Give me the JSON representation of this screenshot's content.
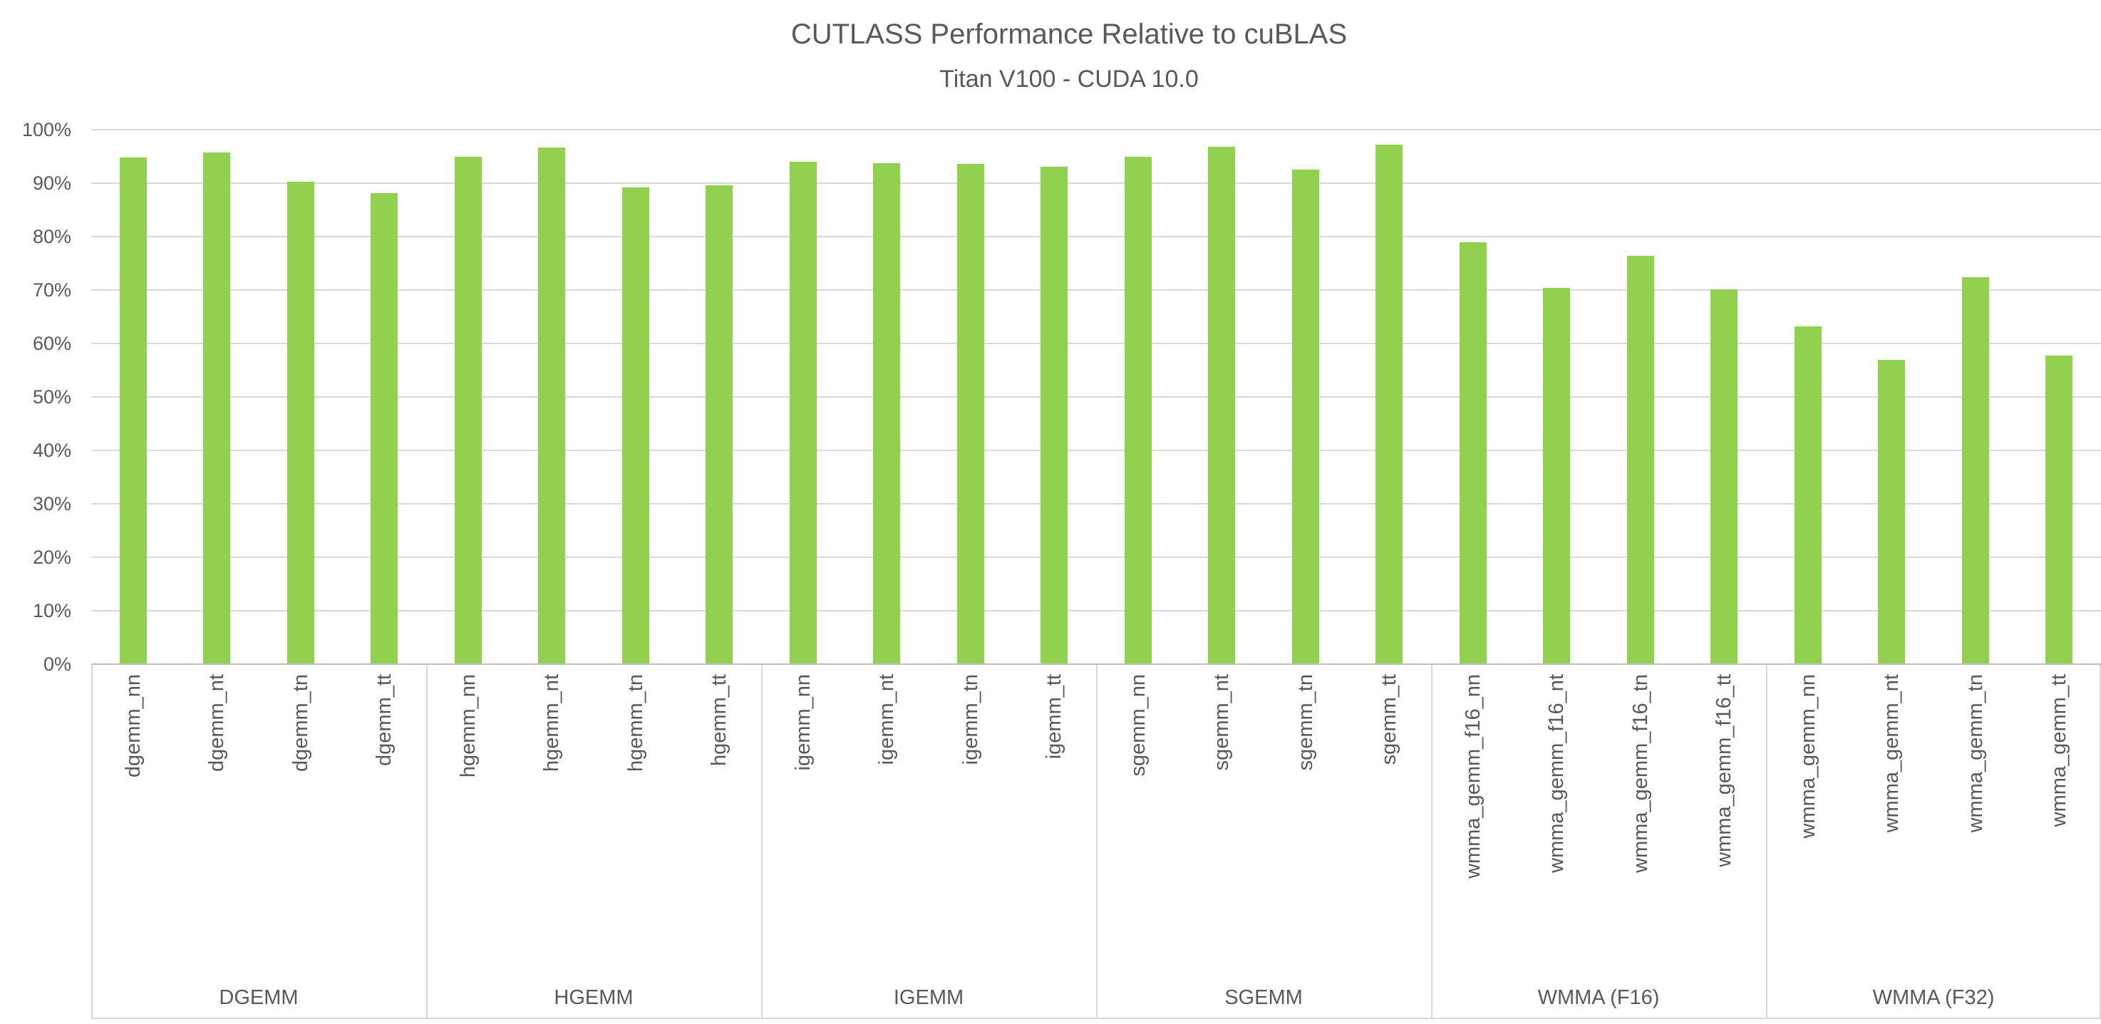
{
  "title": "CUTLASS Performance Relative to cuBLAS",
  "subtitle": "Titan V100 - CUDA 10.0",
  "colors": {
    "bar": "#92D050",
    "gridline": "#D9D9D9",
    "axis_line": "#BFBFBF",
    "text": "#595959",
    "background": "#FFFFFF"
  },
  "chart_data": {
    "type": "bar",
    "title": "CUTLASS Performance Relative to cuBLAS",
    "subtitle": "Titan V100 - CUDA 10.0",
    "xlabel": "",
    "ylabel": "",
    "ylim": [
      0,
      100
    ],
    "ytick_labels": [
      "0%",
      "10%",
      "20%",
      "30%",
      "40%",
      "50%",
      "60%",
      "70%",
      "80%",
      "90%",
      "100%"
    ],
    "grid": true,
    "legend": false,
    "bar_color": "#92D050",
    "value_unit": "percent",
    "groups": [
      {
        "label": "DGEMM",
        "categories": [
          "dgemm_nn",
          "dgemm_nt",
          "dgemm_tn",
          "dgemm_tt"
        ],
        "values": [
          94.8,
          95.7,
          90.3,
          88.1
        ]
      },
      {
        "label": "HGEMM",
        "categories": [
          "hgemm_nn",
          "hgemm_nt",
          "hgemm_tn",
          "hgemm_tt"
        ],
        "values": [
          94.9,
          96.7,
          89.2,
          89.6
        ]
      },
      {
        "label": "IGEMM",
        "categories": [
          "igemm_nn",
          "igemm_nt",
          "igemm_tn",
          "igemm_tt"
        ],
        "values": [
          94.0,
          93.8,
          93.6,
          93.1
        ]
      },
      {
        "label": "SGEMM",
        "categories": [
          "sgemm_nn",
          "sgemm_nt",
          "sgemm_tn",
          "sgemm_tt"
        ],
        "values": [
          94.9,
          96.8,
          92.6,
          97.2
        ]
      },
      {
        "label": "WMMA (F16)",
        "categories": [
          "wmma_gemm_f16_nn",
          "wmma_gemm_f16_nt",
          "wmma_gemm_f16_tn",
          "wmma_gemm_f16_tt"
        ],
        "values": [
          78.9,
          70.4,
          76.4,
          70.1
        ]
      },
      {
        "label": "WMMA (F32)",
        "categories": [
          "wmma_gemm_nn",
          "wmma_gemm_nt",
          "wmma_gemm_tn",
          "wmma_gemm_tt"
        ],
        "values": [
          63.2,
          56.9,
          72.4,
          57.8
        ]
      }
    ]
  }
}
